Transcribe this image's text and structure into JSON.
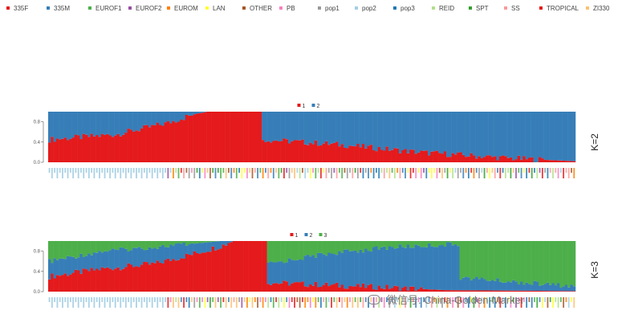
{
  "legend_groups": [
    {
      "label": "335F",
      "color": "#e41a1c"
    },
    {
      "label": "335M",
      "color": "#377eb8"
    },
    {
      "label": "EUROF1",
      "color": "#4daf4a"
    },
    {
      "label": "EUROF2",
      "color": "#984ea3"
    },
    {
      "label": "EUROM",
      "color": "#ff7f00"
    },
    {
      "label": "LAN",
      "color": "#ffff33"
    },
    {
      "label": "OTHER",
      "color": "#a65628"
    },
    {
      "label": "PB",
      "color": "#f781bf"
    },
    {
      "label": "pop1",
      "color": "#999999"
    },
    {
      "label": "pop2",
      "color": "#a6cee3"
    },
    {
      "label": "pop3",
      "color": "#1f78b4"
    },
    {
      "label": "REID",
      "color": "#b2df8a"
    },
    {
      "label": "SPT",
      "color": "#33a02c"
    },
    {
      "label": "SS",
      "color": "#fb9a99"
    },
    {
      "label": "TROPICAL",
      "color": "#e31a1c"
    },
    {
      "label": "ZI330",
      "color": "#fdbf6f"
    }
  ],
  "watermark": "微信号: China-Golden-Marker",
  "chart_data": [
    {
      "type": "bar",
      "subtype": "stacked-admixture",
      "panel_label": "K=2",
      "cluster_legend": [
        {
          "label": "1",
          "color": "#e41a1c"
        },
        {
          "label": "2",
          "color": "#377eb8"
        }
      ],
      "ylim": [
        0,
        1
      ],
      "yticks": [
        "0.0",
        "0.4",
        "0.8"
      ],
      "n_samples": 200,
      "profile_note": "proportion of cluster 1 per sample, sorted",
      "cluster1_proportion_keypoints": [
        [
          0,
          0.45
        ],
        [
          25,
          0.55
        ],
        [
          40,
          0.72
        ],
        [
          45,
          0.78
        ],
        [
          55,
          0.95
        ],
        [
          60,
          1.0
        ],
        [
          80,
          1.0
        ],
        [
          81,
          0.45
        ],
        [
          110,
          0.35
        ],
        [
          140,
          0.2
        ],
        [
          175,
          0.08
        ],
        [
          200,
          0.02
        ]
      ]
    },
    {
      "type": "bar",
      "subtype": "stacked-admixture",
      "panel_label": "K=3",
      "cluster_legend": [
        {
          "label": "1",
          "color": "#e41a1c"
        },
        {
          "label": "2",
          "color": "#377eb8"
        },
        {
          "label": "3",
          "color": "#4daf4a"
        }
      ],
      "ylim": [
        0,
        1
      ],
      "yticks": [
        "0.0",
        "0.4",
        "0.8"
      ],
      "n_samples": 200,
      "profile_note": "approximate proportions of clusters 1 and 3 per sample",
      "cluster1_proportion_keypoints": [
        [
          0,
          0.3
        ],
        [
          20,
          0.45
        ],
        [
          40,
          0.55
        ],
        [
          55,
          0.75
        ],
        [
          65,
          0.9
        ],
        [
          70,
          1.0
        ],
        [
          82,
          1.0
        ],
        [
          83,
          0.18
        ],
        [
          110,
          0.12
        ],
        [
          130,
          0.08
        ],
        [
          150,
          0.03
        ],
        [
          200,
          0.01
        ]
      ],
      "cluster3_proportion_keypoints": [
        [
          0,
          0.4
        ],
        [
          20,
          0.2
        ],
        [
          40,
          0.12
        ],
        [
          55,
          0.05
        ],
        [
          65,
          0.0
        ],
        [
          82,
          0.0
        ],
        [
          83,
          0.45
        ],
        [
          105,
          0.25
        ],
        [
          130,
          0.12
        ],
        [
          155,
          0.06
        ],
        [
          156,
          0.72
        ],
        [
          175,
          0.8
        ],
        [
          200,
          0.9
        ]
      ]
    }
  ]
}
